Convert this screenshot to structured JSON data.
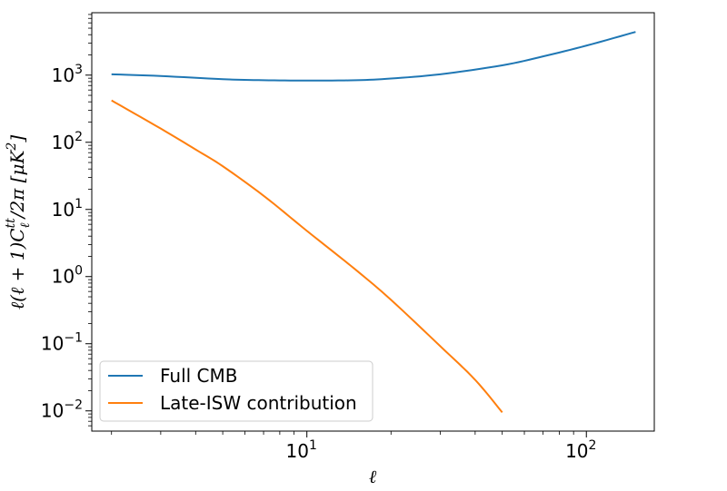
{
  "chart_data": {
    "type": "line",
    "x_scale": "log",
    "y_scale": "log",
    "xlim": [
      1.7,
      175
    ],
    "ylim": [
      0.005,
      8500
    ],
    "xlabel": "ℓ",
    "ylabel": "ℓ(ℓ + 1)Cℓtt/2π [μK²]",
    "x_ticks": [
      {
        "value": 10,
        "base": "10",
        "exp": "1"
      },
      {
        "value": 100,
        "base": "10",
        "exp": "2"
      }
    ],
    "y_ticks": [
      {
        "value": 0.01,
        "base": "10",
        "exp": "−2"
      },
      {
        "value": 0.1,
        "base": "10",
        "exp": "−1"
      },
      {
        "value": 1,
        "base": "10",
        "exp": "0"
      },
      {
        "value": 10,
        "base": "10",
        "exp": "1"
      },
      {
        "value": 100,
        "base": "10",
        "exp": "2"
      },
      {
        "value": 1000,
        "base": "10",
        "exp": "3"
      }
    ],
    "legend_position": "lower-left",
    "series": [
      {
        "name": "Full CMB",
        "color": "#1f77b4",
        "x": [
          2,
          3,
          5,
          7,
          10,
          15,
          20,
          30,
          50,
          70,
          100,
          150
        ],
        "y": [
          1030,
          970,
          870,
          840,
          830,
          840,
          890,
          1030,
          1400,
          1900,
          2750,
          4400
        ]
      },
      {
        "name": "Late-ISW contribution",
        "color": "#ff7f0e",
        "x": [
          2,
          3,
          4,
          5,
          7,
          10,
          15,
          20,
          30,
          40,
          50
        ],
        "y": [
          420,
          160,
          78,
          44,
          16,
          4.8,
          1.25,
          0.45,
          0.092,
          0.029,
          0.0095
        ]
      }
    ]
  }
}
